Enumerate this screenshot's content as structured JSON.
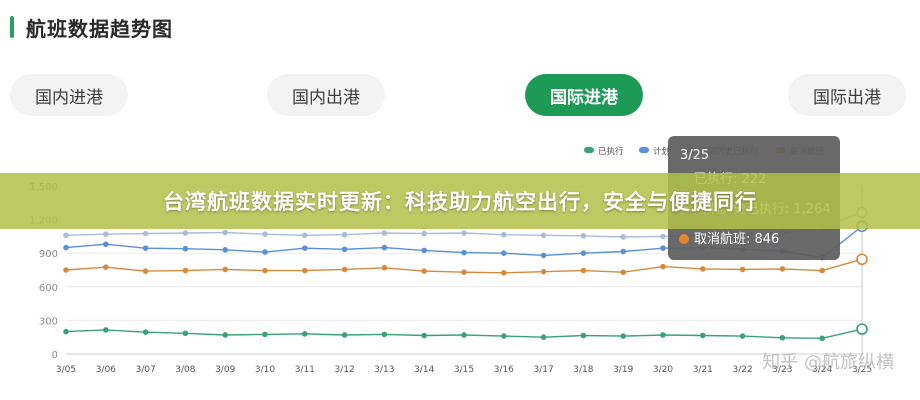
{
  "header": {
    "title": "航班数据趋势图"
  },
  "tabs": [
    {
      "label": "国内进港",
      "active": false
    },
    {
      "label": "国内出港",
      "active": false
    },
    {
      "label": "国际进港",
      "active": true
    },
    {
      "label": "国际出港",
      "active": false
    }
  ],
  "legend": [
    {
      "label": "已执行",
      "color": "#3aa278"
    },
    {
      "label": "计划",
      "color": "#5b8fd6"
    },
    {
      "label": "同期历史已执行",
      "color": "#a9bdd6"
    },
    {
      "label": "取消航班",
      "color": "#d68a3c"
    }
  ],
  "tooltip": {
    "date": "3/25",
    "rows": [
      {
        "label": "已执行: 222",
        "color": "#3aa278"
      },
      {
        "label": "同期历史已执行: 1,264",
        "color": "#a9bdd6"
      },
      {
        "label": "取消航班: 846",
        "color": "#e8842a"
      }
    ]
  },
  "chart_data": {
    "type": "line",
    "x": [
      "3/05",
      "3/06",
      "3/07",
      "3/08",
      "3/09",
      "3/10",
      "3/11",
      "3/12",
      "3/13",
      "3/14",
      "3/15",
      "3/16",
      "3/17",
      "3/18",
      "3/19",
      "3/20",
      "3/21",
      "3/22",
      "3/23",
      "3/24",
      "3/25"
    ],
    "y_ticks": [
      "0",
      "300",
      "600",
      "900",
      "1,200",
      "1,500"
    ],
    "ylim": [
      0,
      1500
    ],
    "series": [
      {
        "name": "已执行",
        "color": "#3aa278",
        "values": [
          200,
          215,
          195,
          185,
          170,
          175,
          180,
          170,
          175,
          165,
          170,
          160,
          150,
          165,
          160,
          170,
          165,
          160,
          145,
          140,
          222
        ]
      },
      {
        "name": "计划",
        "color": "#5b8fd6",
        "values": [
          950,
          980,
          945,
          940,
          930,
          910,
          945,
          935,
          950,
          925,
          905,
          900,
          880,
          900,
          915,
          945,
          950,
          935,
          920,
          860,
          1140
        ]
      },
      {
        "name": "同期历史已执行",
        "color": "#a9bdd6",
        "values": [
          1060,
          1070,
          1075,
          1080,
          1085,
          1070,
          1060,
          1065,
          1080,
          1075,
          1080,
          1065,
          1060,
          1055,
          1045,
          1050,
          1060,
          1070,
          1080,
          1130,
          1264
        ]
      },
      {
        "name": "取消航班",
        "color": "#d68a3c",
        "values": [
          750,
          775,
          740,
          745,
          755,
          745,
          745,
          755,
          770,
          740,
          730,
          725,
          735,
          745,
          730,
          780,
          760,
          755,
          760,
          745,
          846
        ]
      }
    ]
  },
  "banner": {
    "text": "台湾航班数据实时更新：科技助力航空出行，安全与便捷同行"
  },
  "watermark": {
    "text": "知乎 @航旅纵横"
  }
}
